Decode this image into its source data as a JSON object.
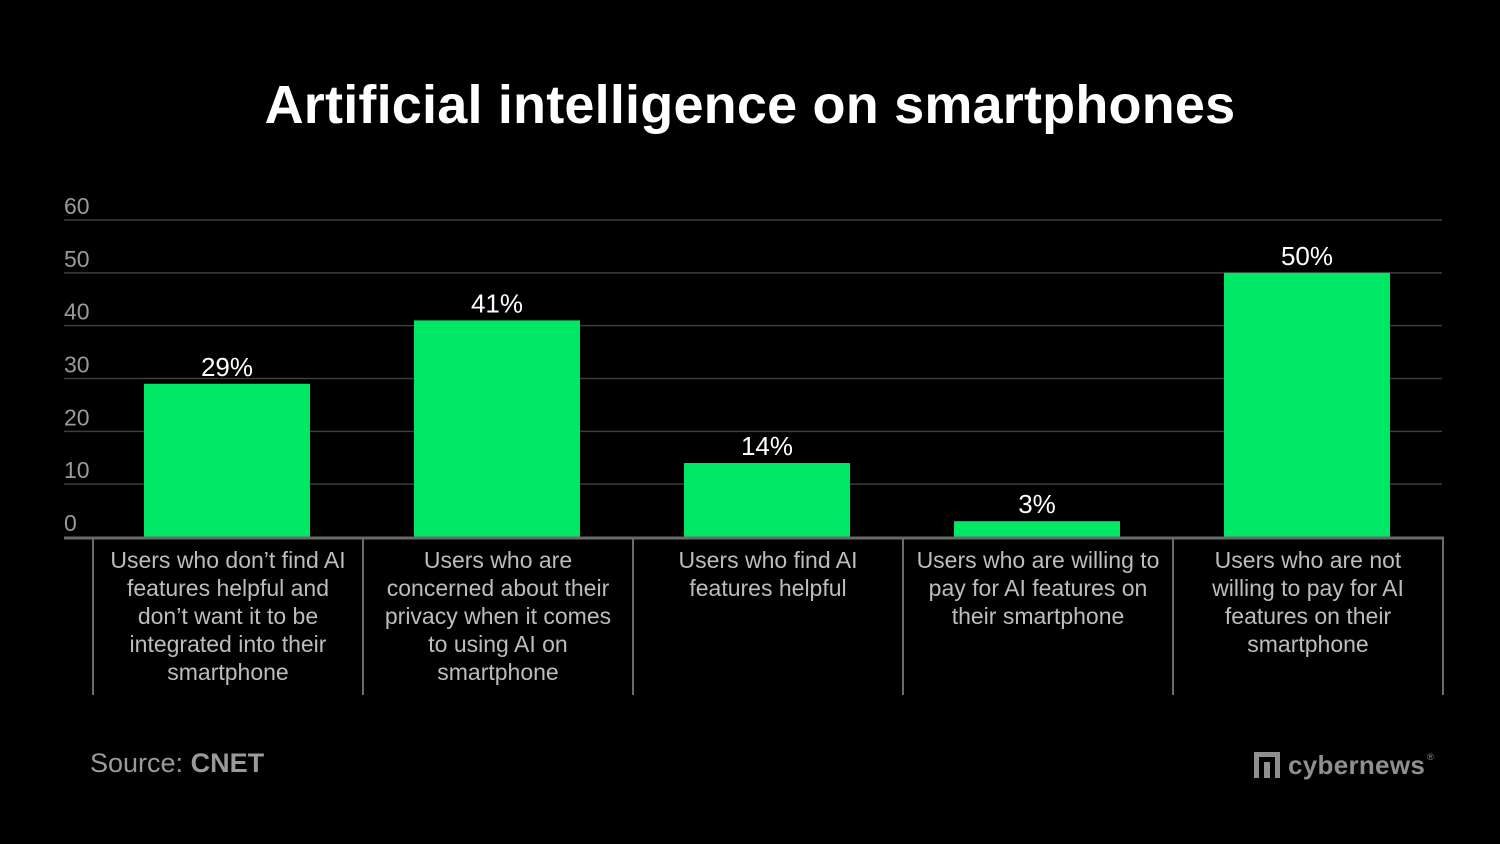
{
  "chart_data": {
    "type": "bar",
    "title": "Artificial intelligence on smartphones",
    "categories": [
      "Users who don’t find AI features helpful and don’t want it to be integrated into their smartphone",
      "Users who are concerned about their privacy when it comes to using AI on smartphone",
      "Users who find AI features helpful",
      "Users who are willing to pay for AI features on their smartphone",
      "Users who are not willing to pay for AI features on their smartphone"
    ],
    "category_lines": [
      [
        "Users who don’t find AI",
        "features helpful and",
        "don’t want it to be",
        "integrated into their",
        "smartphone"
      ],
      [
        "Users who are",
        "concerned about their",
        "privacy when it comes",
        "to using AI on",
        "smartphone"
      ],
      [
        "Users who find AI",
        "features helpful"
      ],
      [
        "Users who are willing to",
        "pay for AI features on",
        "their smartphone"
      ],
      [
        "Users who are not",
        "willing to pay for AI",
        "features on their",
        "smartphone"
      ]
    ],
    "values": [
      29,
      41,
      14,
      3,
      50
    ],
    "data_labels": [
      "29%",
      "41%",
      "14%",
      "3%",
      "50%"
    ],
    "ylim": [
      0,
      60
    ],
    "yticks": [
      "0",
      "10",
      "20",
      "30",
      "40",
      "50",
      "60"
    ],
    "grid": true,
    "xlabel": "",
    "ylabel": ""
  },
  "colors": {
    "background": "#000000",
    "bar": "#00e765",
    "grid": "#3d3d3d",
    "axis": "#6a6a6a",
    "tick_text": "#9a9a9a",
    "label_text": "#bdbdbd",
    "value_text": "#ffffff"
  },
  "footer": {
    "source_prefix": "Source:",
    "source_name": "CNET",
    "brand": "cybernews",
    "brand_reg": "®",
    "brand_icon": "cybernews-logo-icon"
  }
}
